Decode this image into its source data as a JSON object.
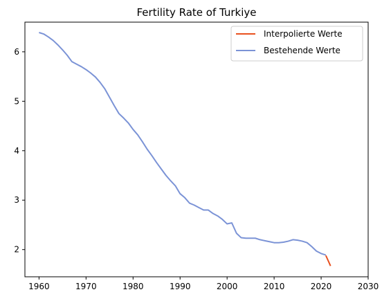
{
  "chart_data": {
    "type": "line",
    "title": "Fertility Rate of Turkiye",
    "xlabel": "",
    "ylabel": "",
    "xlim": [
      1957,
      2030
    ],
    "ylim": [
      1.45,
      6.6
    ],
    "xticks": [
      1960,
      1970,
      1980,
      1990,
      2000,
      2010,
      2020,
      2030
    ],
    "yticks": [
      2,
      3,
      4,
      5,
      6
    ],
    "legend_position": "top-right",
    "series": [
      {
        "name": "Interpolierte Werte",
        "color": "#e8501e",
        "x": [
          2021,
          2022
        ],
        "y": [
          1.88,
          1.67
        ]
      },
      {
        "name": "Bestehende Werte",
        "color": "#7b93d6",
        "x": [
          1960,
          1961,
          1962,
          1963,
          1964,
          1965,
          1966,
          1967,
          1968,
          1969,
          1970,
          1971,
          1972,
          1973,
          1974,
          1975,
          1976,
          1977,
          1978,
          1979,
          1980,
          1981,
          1982,
          1983,
          1984,
          1985,
          1986,
          1987,
          1988,
          1989,
          1990,
          1991,
          1992,
          1993,
          1994,
          1995,
          1996,
          1997,
          1998,
          1999,
          2000,
          2001,
          2002,
          2003,
          2004,
          2005,
          2006,
          2007,
          2008,
          2009,
          2010,
          2011,
          2012,
          2013,
          2014,
          2015,
          2016,
          2017,
          2018,
          2019,
          2020,
          2021
        ],
        "y": [
          6.39,
          6.36,
          6.3,
          6.23,
          6.14,
          6.04,
          5.93,
          5.8,
          5.75,
          5.7,
          5.64,
          5.57,
          5.49,
          5.38,
          5.25,
          5.08,
          4.91,
          4.75,
          4.66,
          4.56,
          4.43,
          4.32,
          4.18,
          4.03,
          3.9,
          3.76,
          3.63,
          3.5,
          3.39,
          3.29,
          3.13,
          3.05,
          2.94,
          2.9,
          2.85,
          2.8,
          2.8,
          2.73,
          2.68,
          2.61,
          2.52,
          2.54,
          2.33,
          2.24,
          2.23,
          2.23,
          2.23,
          2.2,
          2.18,
          2.16,
          2.14,
          2.14,
          2.15,
          2.17,
          2.2,
          2.19,
          2.17,
          2.14,
          2.06,
          1.97,
          1.92,
          1.89
        ]
      }
    ]
  }
}
